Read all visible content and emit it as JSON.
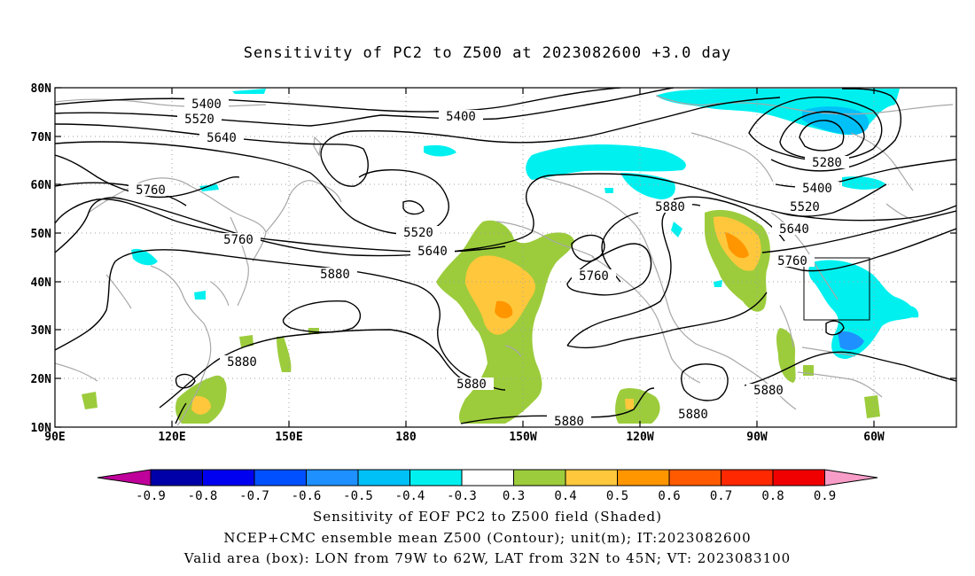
{
  "title": "Sensitivity of PC2 to Z500 at 2023082600 +3.0 day",
  "lat_labels": [
    "80N",
    "70N",
    "60N",
    "50N",
    "40N",
    "30N",
    "20N",
    "10N"
  ],
  "lon_labels": [
    "90E",
    "120E",
    "150E",
    "180",
    "150W",
    "120W",
    "90W",
    "60W"
  ],
  "contour_labels": [
    "5400",
    "5520",
    "5640",
    "5760",
    "5400",
    "5280",
    "5400",
    "5520",
    "5640",
    "5760",
    "5880",
    "5520",
    "5640",
    "5760",
    "5760",
    "5880",
    "5880",
    "5880",
    "5880",
    "5880",
    "5880",
    "5880"
  ],
  "colorbar": {
    "labels": [
      "-0.9",
      "-0.8",
      "-0.7",
      "-0.6",
      "-0.5",
      "-0.4",
      "-0.3",
      "0.3",
      "0.4",
      "0.5",
      "0.6",
      "0.7",
      "0.8",
      "0.9"
    ],
    "colors": [
      "#c0009a",
      "#0000a8",
      "#0000f0",
      "#0050ff",
      "#1e90ff",
      "#00c0f8",
      "#00f0f0",
      "#ffffff",
      "#9ccc3c",
      "#ffc83c",
      "#ff9600",
      "#ff5a00",
      "#ff2800",
      "#f00000",
      "#f89cc8"
    ]
  },
  "captions": {
    "line1": "Sensitivity of EOF PC2 to Z500 field (Shaded)",
    "line2": "NCEP+CMC ensemble mean Z500 (Contour); unit(m); IT:2023082600",
    "line3": "Valid area (box): LON from 79W to 62W, LAT from 32N to 45N; VT: 2023083100"
  }
}
